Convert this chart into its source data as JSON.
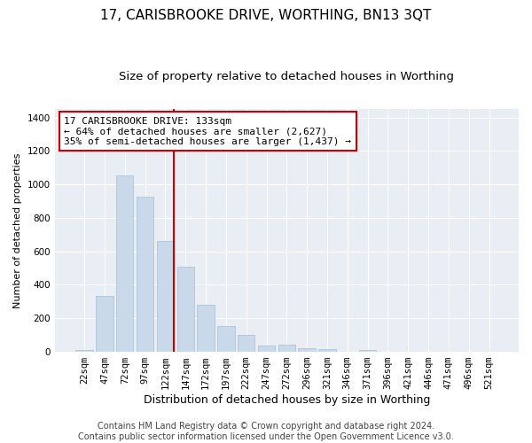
{
  "title": "17, CARISBROOKE DRIVE, WORTHING, BN13 3QT",
  "subtitle": "Size of property relative to detached houses in Worthing",
  "xlabel": "Distribution of detached houses by size in Worthing",
  "ylabel": "Number of detached properties",
  "categories": [
    "22sqm",
    "47sqm",
    "72sqm",
    "97sqm",
    "122sqm",
    "147sqm",
    "172sqm",
    "197sqm",
    "222sqm",
    "247sqm",
    "272sqm",
    "296sqm",
    "321sqm",
    "346sqm",
    "371sqm",
    "396sqm",
    "421sqm",
    "446sqm",
    "471sqm",
    "496sqm",
    "521sqm"
  ],
  "values": [
    10,
    330,
    1055,
    925,
    660,
    505,
    280,
    150,
    100,
    35,
    40,
    20,
    15,
    0,
    10,
    0,
    0,
    0,
    0,
    0,
    0
  ],
  "bar_color": "#c9d9ea",
  "bar_edge_color": "#aabdd4",
  "vline_color": "#cc0000",
  "annotation_text": "17 CARISBROOKE DRIVE: 133sqm\n← 64% of detached houses are smaller (2,627)\n35% of semi-detached houses are larger (1,437) →",
  "annotation_box_facecolor": "#ffffff",
  "annotation_box_edgecolor": "#cc0000",
  "ylim": [
    0,
    1450
  ],
  "yticks": [
    0,
    200,
    400,
    600,
    800,
    1000,
    1200,
    1400
  ],
  "fig_bg_color": "#ffffff",
  "plot_bg_color": "#e8eef4",
  "grid_color": "#ffffff",
  "footer": "Contains HM Land Registry data © Crown copyright and database right 2024.\nContains public sector information licensed under the Open Government Licence v3.0.",
  "title_fontsize": 11,
  "subtitle_fontsize": 9.5,
  "ylabel_fontsize": 8,
  "xlabel_fontsize": 9,
  "tick_fontsize": 7.5,
  "annotation_fontsize": 8,
  "footer_fontsize": 7
}
